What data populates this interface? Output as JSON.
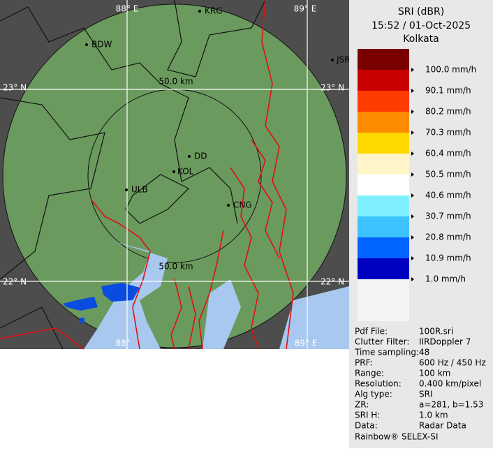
{
  "header": {
    "title": "SRI (dBR)",
    "datetime": "15:52 / 01-Oct-2025",
    "station": "Kolkata"
  },
  "legend": {
    "colors": [
      "#7a0000",
      "#c80000",
      "#ff3c00",
      "#ff8c00",
      "#ffd800",
      "#fff5c8",
      "#ffffff",
      "#7ff0ff",
      "#3cc3ff",
      "#0064ff",
      "#0000c0"
    ],
    "labels": [
      "100.0 mm/h",
      "90.1 mm/h",
      "80.2 mm/h",
      "70.3 mm/h",
      "60.4 mm/h",
      "50.5 mm/h",
      "40.6 mm/h",
      "30.7 mm/h",
      "20.8 mm/h",
      "10.9 mm/h",
      "1.0 mm/h"
    ]
  },
  "info": [
    {
      "key": "Pdf File:",
      "value": "100R.sri"
    },
    {
      "key": "Clutter Filter:",
      "value": "IIRDoppler 7"
    },
    {
      "key": "Time sampling:",
      "value": "48"
    },
    {
      "key": "PRF:",
      "value": "600 Hz / 450 Hz"
    },
    {
      "key": "Range:",
      "value": "100 km"
    },
    {
      "key": "Resolution:",
      "value": "0.400 km/pixel"
    },
    {
      "key": "Alg type:",
      "value": "SRI"
    },
    {
      "key": "ZR:",
      "value": "a=281, b=1.53"
    },
    {
      "key": "SRI H:",
      "value": "1.0 km"
    },
    {
      "key": "Data:",
      "value": "Radar Data"
    }
  ],
  "footer": "Rainbow® SELEX-SI",
  "map": {
    "places": [
      "BDW",
      "KRG",
      "JSR",
      "DD",
      "KOL",
      "ULB",
      "CNG"
    ],
    "range_rings": [
      "50.0 km",
      "50.0 km"
    ],
    "longitudes": [
      "88° E",
      "89° E",
      "88°",
      "89° E"
    ],
    "latitudes": [
      "23° N",
      "23° N",
      "22° N",
      "22° N"
    ]
  }
}
